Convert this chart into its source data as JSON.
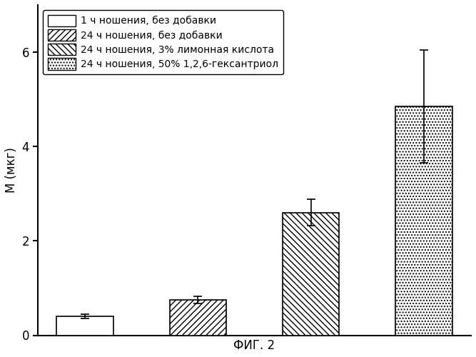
{
  "values": [
    0.4,
    0.75,
    2.6,
    4.85
  ],
  "errors": [
    0.05,
    0.08,
    0.28,
    1.2
  ],
  "bar_width": 0.6,
  "bar_positions": [
    1.0,
    2.2,
    3.4,
    4.6
  ],
  "ylabel": "М (мкг)",
  "xlabel": "ФИГ. 2",
  "ylim": [
    0,
    7
  ],
  "yticks": [
    0,
    2,
    4,
    6
  ],
  "legend_labels": [
    "1 ч ношения, без добавки",
    "24 ч ношения, без добавки",
    "24 ч ношения, 3% лимонная кислота",
    "24 ч ношения, 50% 1,2,6-гексантриол"
  ],
  "background_color": "#ffffff",
  "label_fontsize": 12,
  "legend_fontsize": 10,
  "tick_fontsize": 12
}
